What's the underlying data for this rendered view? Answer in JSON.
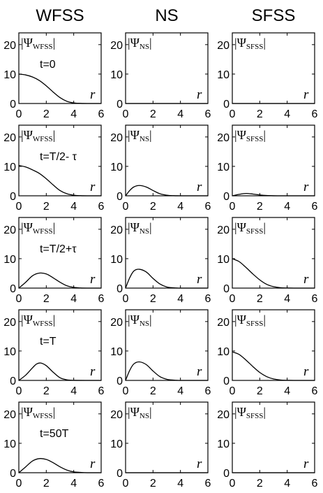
{
  "chart_data": {
    "type": "line",
    "columns": [
      "WFSS",
      "NS",
      "SFSS"
    ],
    "panel_labels": [
      {
        "main": "|Ψ",
        "sub": "WFSS",
        "close": "|"
      },
      {
        "main": "|Ψ",
        "sub": "NS",
        "close": "|"
      },
      {
        "main": "|Ψ",
        "sub": "SFSS",
        "close": "|"
      }
    ],
    "row_annotations": [
      "t=0",
      "t=T/2- τ",
      "t=T/2+τ",
      "t=T",
      "t=50T"
    ],
    "xlabel": "r",
    "xlim": [
      0,
      6
    ],
    "ylim": [
      0,
      24
    ],
    "xticks": [
      0,
      2,
      4,
      6
    ],
    "yticks": [
      0,
      10,
      20
    ],
    "series": [
      [
        {
          "x": [
            0,
            0.5,
            1,
            1.5,
            2,
            2.5,
            3,
            3.5,
            4,
            4.5,
            5,
            6
          ],
          "y": [
            10,
            9.7,
            9,
            7.8,
            6,
            3.9,
            2,
            0.75,
            0.2,
            0.05,
            0,
            0
          ]
        },
        {
          "x": [
            0,
            0.5,
            1,
            1.5,
            2,
            2.5,
            3,
            3.5,
            4,
            4.5,
            5,
            6
          ],
          "y": [
            10.3,
            9.8,
            8.8,
            7.6,
            5.8,
            3.7,
            1.8,
            0.7,
            0.2,
            0.05,
            0,
            0
          ]
        },
        {
          "x": [
            0,
            0.5,
            1,
            1.5,
            2,
            2.5,
            3,
            3.5,
            4,
            4.5,
            5,
            6
          ],
          "y": [
            0,
            2,
            4.2,
            5.1,
            4.8,
            3.5,
            2,
            0.8,
            0.25,
            0.05,
            0,
            0
          ]
        },
        {
          "x": [
            0,
            0.5,
            1,
            1.3,
            1.6,
            2,
            2.5,
            3,
            3.5,
            4,
            5,
            6
          ],
          "y": [
            0,
            1.8,
            4.3,
            5.6,
            5.9,
            5,
            2.8,
            0.9,
            0.2,
            0.05,
            0,
            0
          ]
        },
        {
          "x": [
            0,
            0.5,
            1,
            1.5,
            2,
            2.5,
            3,
            3.5,
            4,
            4.5,
            5,
            6
          ],
          "y": [
            0,
            2,
            4,
            4.8,
            4.5,
            3.4,
            2,
            0.9,
            0.3,
            0.1,
            0,
            0
          ]
        }
      ],
      [
        {
          "x": [
            0,
            6
          ],
          "y": [
            0,
            0
          ]
        },
        {
          "x": [
            0,
            0.3,
            0.6,
            1,
            1.5,
            2,
            2.5,
            3,
            3.5,
            4,
            5,
            6
          ],
          "y": [
            0,
            1.8,
            3,
            3.5,
            3,
            1.8,
            0.7,
            0.2,
            0.05,
            0,
            0,
            0
          ]
        },
        {
          "x": [
            0,
            0.3,
            0.6,
            1,
            1.5,
            2,
            2.5,
            3,
            3.5,
            4,
            5,
            6
          ],
          "y": [
            0,
            3.5,
            5.8,
            6.4,
            5.5,
            3.3,
            1.4,
            0.4,
            0.1,
            0,
            0,
            0
          ]
        },
        {
          "x": [
            0,
            0.3,
            0.6,
            1,
            1.5,
            2,
            2.5,
            3,
            3.5,
            4,
            5,
            6
          ],
          "y": [
            0,
            3.4,
            5.6,
            6.3,
            5.4,
            3.2,
            1.3,
            0.4,
            0.1,
            0,
            0,
            0
          ]
        },
        {
          "x": [
            0,
            6
          ],
          "y": [
            0,
            0
          ]
        }
      ],
      [
        {
          "x": [
            0,
            6
          ],
          "y": [
            0,
            0
          ]
        },
        {
          "x": [
            0,
            0.5,
            1,
            1.5,
            2,
            2.5,
            3,
            3.5,
            4,
            5,
            6
          ],
          "y": [
            0,
            0.5,
            0.8,
            0.6,
            0.3,
            0.1,
            0.02,
            0,
            0,
            0,
            0
          ]
        },
        {
          "x": [
            0,
            0.5,
            1,
            1.5,
            2,
            2.5,
            3,
            3.5,
            4,
            4.5,
            5,
            6
          ],
          "y": [
            10,
            9,
            7,
            4.8,
            2.8,
            1.3,
            0.5,
            0.15,
            0.05,
            0,
            0,
            0
          ]
        },
        {
          "x": [
            0,
            0.5,
            1,
            1.5,
            2,
            2.5,
            3,
            3.5,
            4,
            4.5,
            5,
            6
          ],
          "y": [
            9.7,
            8.8,
            6.9,
            4.7,
            2.7,
            1.3,
            0.5,
            0.15,
            0.05,
            0,
            0,
            0
          ]
        },
        {
          "x": [
            0,
            6
          ],
          "y": [
            0,
            0
          ]
        }
      ]
    ]
  }
}
